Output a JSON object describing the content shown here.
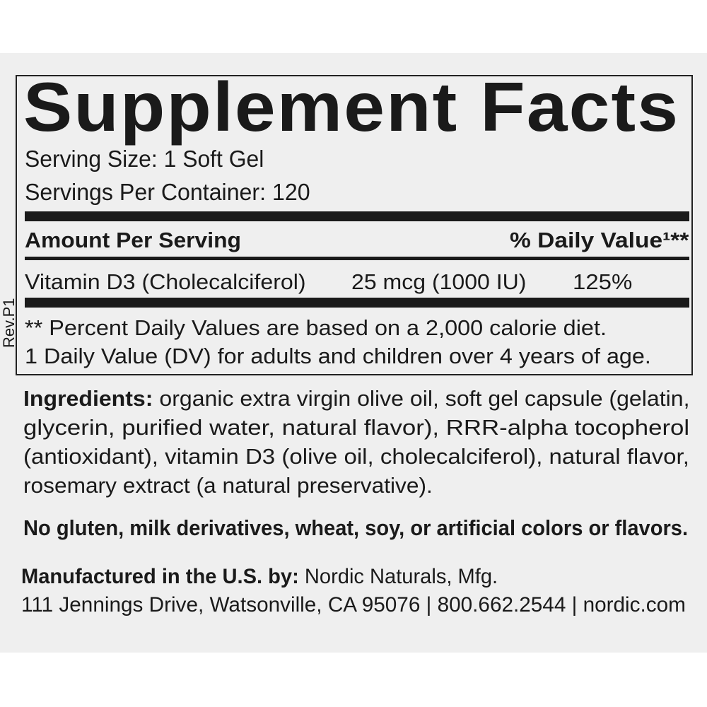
{
  "label": {
    "title": "Supplement Facts",
    "serving_size": "Serving Size: 1 Soft Gel",
    "servings_per_container": "Servings Per Container: 120",
    "header_left": "Amount Per Serving",
    "header_right": "% Daily Value¹**",
    "rows": [
      {
        "name": "Vitamin D3 (Cholecalciferol)",
        "amount": "25 mcg (1000 IU)",
        "dv": "125%"
      }
    ],
    "footnotes": [
      "** Percent Daily Values are based on a 2,000 calorie diet.",
      "1  Daily Value (DV) for adults and children over 4 years of age."
    ],
    "revision": "Rev.P1"
  },
  "ingredients": {
    "label": "Ingredients:",
    "lines": [
      "organic extra virgin olive oil, soft gel capsule (gelatin,",
      "glycerin, purified water, natural flavor), RRR-alpha tocopherol",
      "(antioxidant), vitamin D3 (olive oil, cholecalciferol), natural flavor,",
      "rosemary extract (a natural preservative)."
    ]
  },
  "allergen_statement": "No gluten, milk derivatives, wheat, soy, or artificial colors or flavors.",
  "manufacturer": {
    "label": "Manufactured in the U.S. by:",
    "name": "Nordic Naturals, Mfg.",
    "address": "111 Jennings Drive, Watsonville, CA 95076 | 800.662.2544 | nordic.com"
  }
}
